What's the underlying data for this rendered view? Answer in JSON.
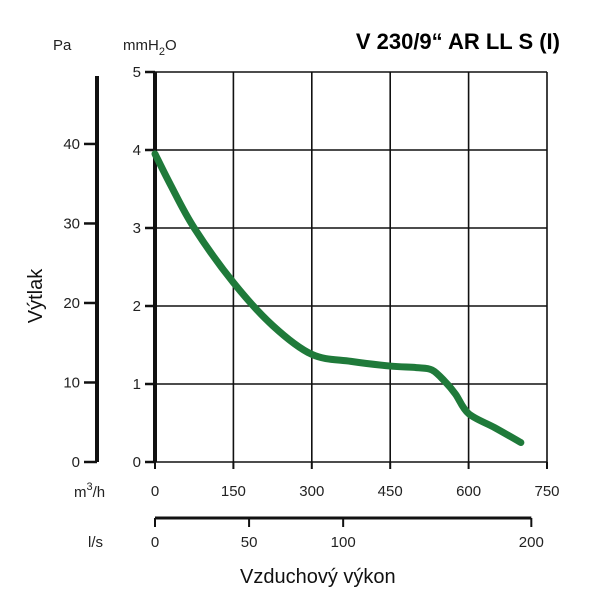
{
  "chart_data": {
    "type": "line",
    "title": "V 230/9“ AR LL S (I)",
    "ylabel": "Výtlak",
    "xlabel": "Vzduchový výkon",
    "units": {
      "pa": "Pa",
      "mmh2o_main": "mmH",
      "mmh2o_sub": "2",
      "mmh2o_end": "O",
      "m3h_main": "m",
      "m3h_sup": "3",
      "m3h_end": "/h",
      "ls": "l/s"
    },
    "x_m3h": {
      "ticks": [
        0,
        150,
        300,
        450,
        600,
        750
      ],
      "range": [
        0,
        750
      ]
    },
    "x_ls": {
      "ticks": [
        0,
        50,
        100,
        200
      ]
    },
    "y_mmh2o": {
      "ticks": [
        0,
        1,
        2,
        3,
        4,
        5
      ],
      "range": [
        0,
        5
      ]
    },
    "y_pa": {
      "ticks": [
        0,
        10,
        20,
        30,
        40
      ]
    },
    "grid": true,
    "line_color": "#1f7a3a",
    "series": [
      {
        "x": [
          0,
          30,
          75,
          150,
          225,
          300,
          375,
          450,
          500,
          530,
          555,
          575,
          600,
          650,
          700
        ],
        "y": [
          3.95,
          3.55,
          3.0,
          2.3,
          1.75,
          1.38,
          1.29,
          1.23,
          1.21,
          1.18,
          1.03,
          0.87,
          0.62,
          0.44,
          0.25
        ]
      }
    ]
  }
}
